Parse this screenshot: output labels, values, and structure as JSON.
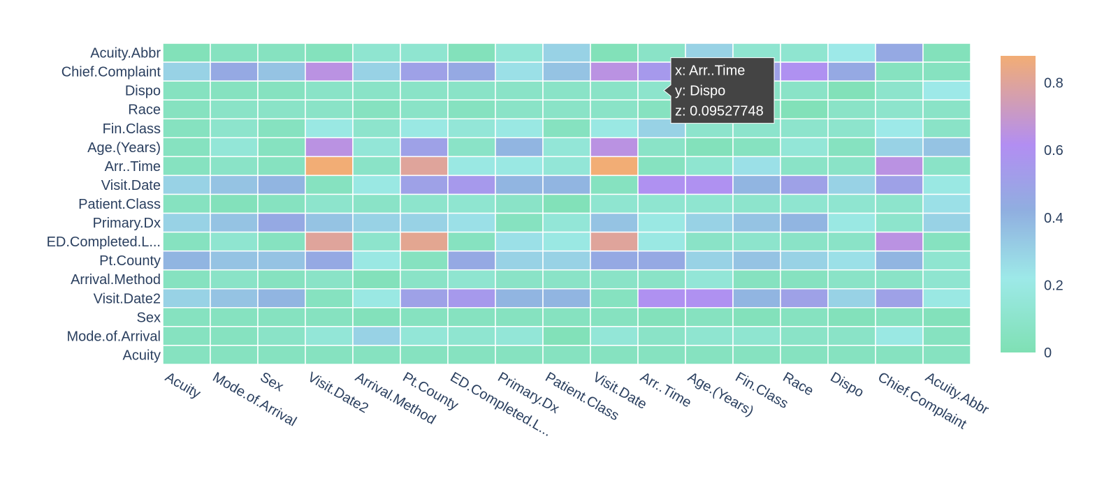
{
  "chart_data": {
    "type": "heatmap",
    "x_labels": [
      "Acuity",
      "Mode.of.Arrival",
      "Sex",
      "Visit.Date2",
      "Arrival.Method",
      "Pt.County",
      "ED.Completed.L...",
      "Primary.Dx",
      "Patient.Class",
      "Visit.Date",
      "Arr..Time",
      "Age.(Years)",
      "Fin.Class",
      "Race",
      "Dispo",
      "Chief.Complaint",
      "Acuity.Abbr"
    ],
    "y_labels": [
      "Acuity.Abbr",
      "Chief.Complaint",
      "Dispo",
      "Race",
      "Fin.Class",
      "Age.(Years)",
      "Arr..Time",
      "Visit.Date",
      "Patient.Class",
      "Primary.Dx",
      "ED.Completed.L...",
      "Pt.County",
      "Arrival.Method",
      "Visit.Date2",
      "Sex",
      "Mode.of.Arrival",
      "Acuity"
    ],
    "z": [
      [
        0.02,
        0.05,
        0.05,
        0.04,
        0.12,
        0.12,
        0.03,
        0.15,
        0.3,
        0.02,
        0.08,
        0.3,
        0.12,
        0.12,
        0.22,
        0.45,
        0.03
      ],
      [
        0.3,
        0.45,
        0.35,
        0.65,
        0.3,
        0.5,
        0.45,
        0.25,
        0.35,
        0.65,
        0.55,
        0.5,
        0.5,
        0.6,
        0.45,
        0.05,
        0.05
      ],
      [
        0.05,
        0.05,
        0.05,
        0.08,
        0.08,
        0.08,
        0.08,
        0.08,
        0.08,
        0.08,
        0.1,
        0.08,
        0.08,
        0.08,
        0.02,
        0.1,
        0.22
      ],
      [
        0.05,
        0.08,
        0.08,
        0.08,
        0.05,
        0.08,
        0.05,
        0.08,
        0.08,
        0.08,
        0.05,
        0.08,
        0.05,
        0.02,
        0.08,
        0.1,
        0.08
      ],
      [
        0.05,
        0.1,
        0.05,
        0.2,
        0.1,
        0.2,
        0.15,
        0.2,
        0.05,
        0.2,
        0.3,
        0.1,
        0.1,
        0.1,
        0.1,
        0.22,
        0.08
      ],
      [
        0.05,
        0.15,
        0.05,
        0.65,
        0.15,
        0.5,
        0.08,
        0.4,
        0.15,
        0.65,
        0.08,
        0.03,
        0.05,
        0.15,
        0.05,
        0.3,
        0.35
      ],
      [
        0.05,
        0.08,
        0.05,
        0.88,
        0.08,
        0.8,
        0.2,
        0.2,
        0.15,
        0.88,
        0.05,
        0.12,
        0.25,
        0.08,
        0.08,
        0.65,
        0.08
      ],
      [
        0.3,
        0.35,
        0.4,
        0.05,
        0.2,
        0.5,
        0.55,
        0.4,
        0.4,
        0.05,
        0.6,
        0.6,
        0.4,
        0.5,
        0.3,
        0.5,
        0.2
      ],
      [
        0.05,
        0.03,
        0.05,
        0.1,
        0.08,
        0.1,
        0.12,
        0.08,
        0.02,
        0.12,
        0.12,
        0.12,
        0.1,
        0.12,
        0.12,
        0.1,
        0.25
      ],
      [
        0.3,
        0.35,
        0.45,
        0.35,
        0.3,
        0.3,
        0.25,
        0.05,
        0.15,
        0.35,
        0.2,
        0.3,
        0.35,
        0.4,
        0.2,
        0.1,
        0.3
      ],
      [
        0.05,
        0.12,
        0.05,
        0.8,
        0.1,
        0.82,
        0.05,
        0.25,
        0.2,
        0.8,
        0.2,
        0.08,
        0.1,
        0.08,
        0.08,
        0.65,
        0.05
      ],
      [
        0.4,
        0.35,
        0.35,
        0.45,
        0.2,
        0.05,
        0.45,
        0.3,
        0.3,
        0.45,
        0.45,
        0.3,
        0.35,
        0.3,
        0.25,
        0.4,
        0.12
      ],
      [
        0.05,
        0.08,
        0.05,
        0.08,
        0.03,
        0.08,
        0.12,
        0.08,
        0.08,
        0.08,
        0.08,
        0.15,
        0.05,
        0.05,
        0.08,
        0.08,
        0.12
      ],
      [
        0.3,
        0.35,
        0.4,
        0.05,
        0.2,
        0.5,
        0.55,
        0.4,
        0.4,
        0.05,
        0.6,
        0.6,
        0.4,
        0.5,
        0.3,
        0.5,
        0.2
      ],
      [
        0.05,
        0.05,
        0.05,
        0.05,
        0.03,
        0.05,
        0.05,
        0.05,
        0.05,
        0.05,
        0.03,
        0.05,
        0.03,
        0.05,
        0.03,
        0.05,
        0.03
      ],
      [
        0.05,
        0.05,
        0.08,
        0.15,
        0.3,
        0.15,
        0.12,
        0.15,
        0.02,
        0.15,
        0.08,
        0.12,
        0.12,
        0.08,
        0.08,
        0.2,
        0.05
      ],
      [
        0.05,
        0.05,
        0.05,
        0.05,
        0.05,
        0.05,
        0.05,
        0.05,
        0.05,
        0.05,
        0.05,
        0.05,
        0.05,
        0.05,
        0.05,
        0.05,
        0.05
      ]
    ],
    "zrange": [
      0,
      0.88
    ],
    "colorbar": {
      "ticks": [
        0,
        0.2,
        0.4,
        0.6,
        0.8
      ],
      "tick_labels": [
        "0",
        "0.2",
        "0.4",
        "0.6",
        "0.8"
      ]
    },
    "colorscale": [
      [
        0.0,
        "#7fe0b4"
      ],
      [
        0.25,
        "#9de9e8"
      ],
      [
        0.48,
        "#90aee0"
      ],
      [
        0.7,
        "#b28ef2"
      ],
      [
        1.0,
        "#f2ad75"
      ]
    ]
  },
  "tooltip": {
    "x_line": "x: Arr..Time",
    "y_line": "y: Dispo",
    "z_line": "z: 0.09527748",
    "target_x": "Arr..Time",
    "target_y": "Dispo"
  }
}
